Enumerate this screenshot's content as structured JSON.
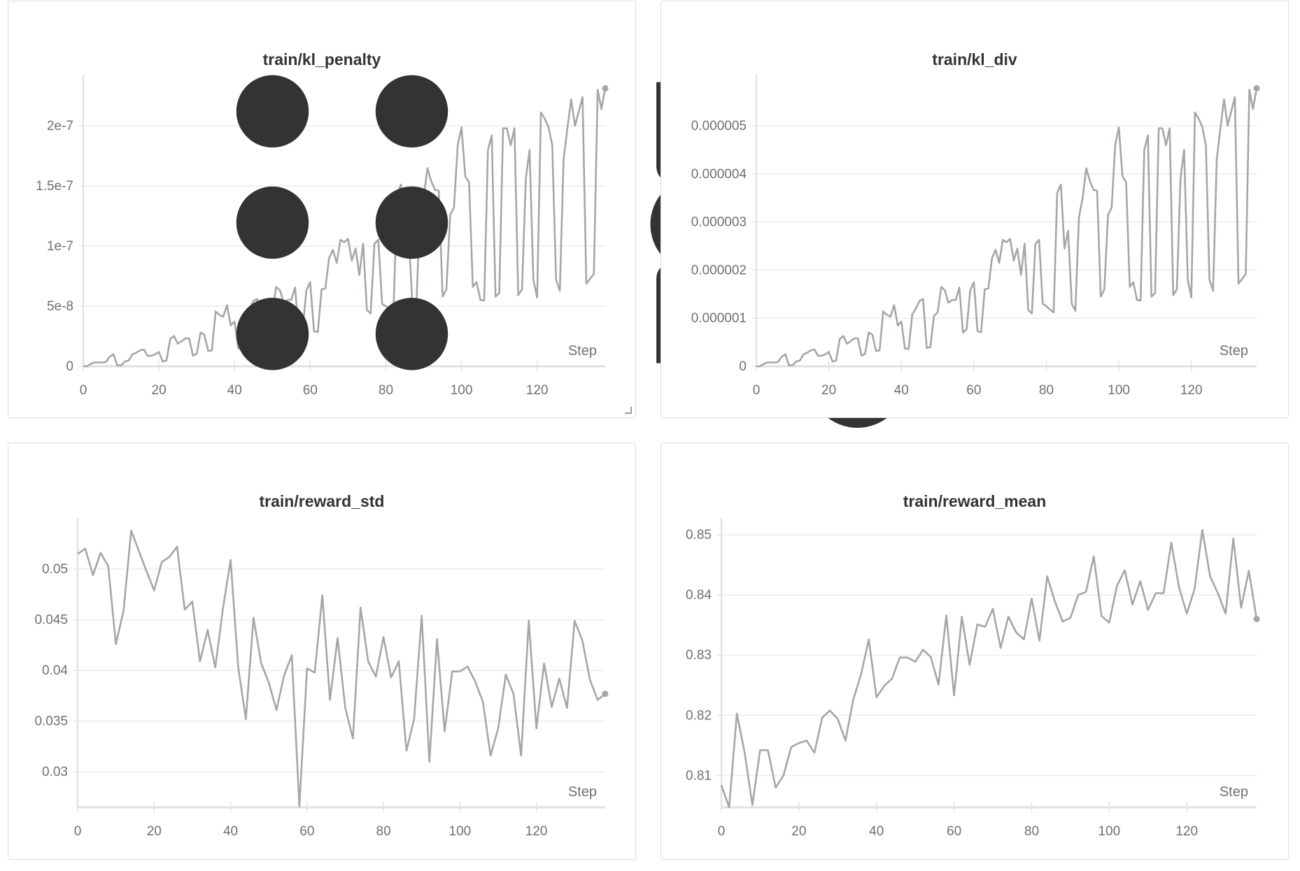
{
  "toolbar": {
    "icons": [
      "drag-handle-icon",
      "fullscreen-icon",
      "gear-icon",
      "more-icon"
    ]
  },
  "line_color": "#a3a7aa",
  "chart_data": [
    {
      "type": "line",
      "title": "train/kl_penalty",
      "xlabel": "Step",
      "xlim": [
        0,
        138
      ],
      "ylim": [
        0,
        2.32e-07
      ],
      "x_ticks": [
        0,
        20,
        40,
        60,
        80,
        100,
        120
      ],
      "x_tick_labels": [
        "0",
        "20",
        "40",
        "60",
        "80",
        "100",
        "120"
      ],
      "y_ticks": [
        0,
        5e-08,
        1e-07,
        1.5e-07,
        2e-07
      ],
      "y_tick_labels": [
        "0",
        "5e-8",
        "1e-7",
        "1.5e-7",
        "2e-7"
      ],
      "grid": true,
      "x": [
        0,
        1,
        2,
        3,
        4,
        5,
        6,
        7,
        8,
        9,
        10,
        11,
        12,
        13,
        14,
        15,
        16,
        17,
        18,
        19,
        20,
        21,
        22,
        23,
        24,
        25,
        26,
        27,
        28,
        29,
        30,
        31,
        32,
        33,
        34,
        35,
        36,
        37,
        38,
        39,
        40,
        41,
        42,
        43,
        44,
        45,
        46,
        47,
        48,
        49,
        50,
        51,
        52,
        53,
        54,
        55,
        56,
        57,
        58,
        59,
        60,
        61,
        62,
        63,
        64,
        65,
        66,
        67,
        68,
        69,
        70,
        71,
        72,
        73,
        74,
        75,
        76,
        77,
        78,
        79,
        80,
        81,
        82,
        83,
        84,
        85,
        86,
        87,
        88,
        89,
        90,
        91,
        92,
        93,
        94,
        95,
        96,
        97,
        98,
        99,
        100,
        101,
        102,
        103,
        104,
        105,
        106,
        107,
        108,
        109,
        110,
        111,
        112,
        113,
        114,
        115,
        116,
        117,
        118,
        119,
        120,
        121,
        122,
        123,
        124,
        125,
        126,
        127,
        128,
        129,
        130,
        131,
        132,
        133,
        134,
        135,
        136,
        137,
        138
      ],
      "y": [
        0,
        0,
        2e-09,
        3.2e-09,
        3.2e-09,
        3.2e-09,
        3.6e-09,
        8e-09,
        1e-08,
        8e-10,
        8e-10,
        4e-09,
        4.8e-09,
        1e-08,
        1.12e-08,
        1.32e-08,
        1.4e-08,
        8.8e-09,
        8.8e-09,
        1e-08,
        1.2e-08,
        4e-09,
        4.8e-09,
        2.28e-08,
        2.52e-08,
        1.88e-08,
        2.08e-08,
        2.32e-08,
        2.32e-08,
        8.8e-09,
        1.04e-08,
        2.8e-08,
        2.64e-08,
        1.28e-08,
        1.32e-08,
        4.56e-08,
        4.28e-08,
        4.12e-08,
        5.08e-08,
        3.4e-08,
        3.72e-08,
        1.48e-08,
        1.44e-08,
        4.32e-08,
        4.8e-08,
        5.44e-08,
        5.6e-08,
        1.52e-08,
        1.6e-08,
        4.2e-08,
        4.48e-08,
        6.6e-08,
        6.32e-08,
        5.28e-08,
        5.52e-08,
        5.52e-08,
        6.56e-08,
        2.8e-08,
        3.08e-08,
        6.32e-08,
        7e-08,
        2.92e-08,
        2.84e-08,
        6.4e-08,
        6.48e-08,
        9e-08,
        9.68e-08,
        8.6e-08,
        1.052e-07,
        1.032e-07,
        1.06e-07,
        8.8e-08,
        9.8e-08,
        7.6e-08,
        1.02e-07,
        4.68e-08,
        4.4e-08,
        1.02e-07,
        1.052e-07,
        5.2e-08,
        5e-08,
        4.72e-08,
        4.48e-08,
        1.44e-07,
        1.512e-07,
        9.8e-08,
        1.128e-07,
        5.2e-08,
        4.6e-08,
        1.24e-07,
        1.4e-07,
        1.648e-07,
        1.54e-07,
        1.468e-07,
        1.46e-07,
        5.8e-08,
        6.4e-08,
        1.26e-07,
        1.32e-07,
        1.84e-07,
        1.988e-07,
        1.58e-07,
        1.532e-07,
        6.6e-08,
        7e-08,
        5.52e-08,
        5.48e-08,
        1.8e-07,
        1.92e-07,
        5.8e-08,
        6.08e-08,
        1.98e-07,
        1.98e-07,
        1.84e-07,
        1.98e-07,
        5.92e-08,
        6.4e-08,
        1.56e-07,
        1.8e-07,
        7.2e-08,
        5.72e-08,
        2.112e-07,
        2.06e-07,
        1.992e-07,
        1.84e-07,
        7.2e-08,
        6.28e-08,
        1.72e-07,
        1.98e-07,
        2.22e-07,
        2e-07,
        2.12e-07,
        2.24e-07,
        6.88e-08,
        7.28e-08,
        7.68e-08,
        2.3e-07,
        2.14e-07,
        2.312e-07
      ]
    },
    {
      "type": "line",
      "title": "train/kl_div",
      "xlabel": "Step",
      "xlim": [
        0,
        138
      ],
      "ylim": [
        0,
        5.8e-06
      ],
      "x_ticks": [
        0,
        20,
        40,
        60,
        80,
        100,
        120
      ],
      "x_tick_labels": [
        "0",
        "20",
        "40",
        "60",
        "80",
        "100",
        "120"
      ],
      "y_ticks": [
        0,
        1e-06,
        2e-06,
        3e-06,
        4e-06,
        5e-06
      ],
      "y_tick_labels": [
        "0",
        "0.000001",
        "0.000002",
        "0.000003",
        "0.000004",
        "0.000005"
      ],
      "grid": true,
      "x": [
        0,
        1,
        2,
        3,
        4,
        5,
        6,
        7,
        8,
        9,
        10,
        11,
        12,
        13,
        14,
        15,
        16,
        17,
        18,
        19,
        20,
        21,
        22,
        23,
        24,
        25,
        26,
        27,
        28,
        29,
        30,
        31,
        32,
        33,
        34,
        35,
        36,
        37,
        38,
        39,
        40,
        41,
        42,
        43,
        44,
        45,
        46,
        47,
        48,
        49,
        50,
        51,
        52,
        53,
        54,
        55,
        56,
        57,
        58,
        59,
        60,
        61,
        62,
        63,
        64,
        65,
        66,
        67,
        68,
        69,
        70,
        71,
        72,
        73,
        74,
        75,
        76,
        77,
        78,
        79,
        80,
        81,
        82,
        83,
        84,
        85,
        86,
        87,
        88,
        89,
        90,
        91,
        92,
        93,
        94,
        95,
        96,
        97,
        98,
        99,
        100,
        101,
        102,
        103,
        104,
        105,
        106,
        107,
        108,
        109,
        110,
        111,
        112,
        113,
        114,
        115,
        116,
        117,
        118,
        119,
        120,
        121,
        122,
        123,
        124,
        125,
        126,
        127,
        128,
        129,
        130,
        131,
        132,
        133,
        134,
        135,
        136,
        137,
        138
      ],
      "y": [
        0,
        0,
        5e-08,
        8e-08,
        8e-08,
        8e-08,
        9e-08,
        2e-07,
        2.5e-07,
        2e-08,
        2e-08,
        1e-07,
        1.2e-07,
        2.5e-07,
        2.8e-07,
        3.3e-07,
        3.5e-07,
        2.2e-07,
        2.2e-07,
        2.5e-07,
        3e-07,
        1e-07,
        1.2e-07,
        5.7e-07,
        6.3e-07,
        4.7e-07,
        5.2e-07,
        5.8e-07,
        5.8e-07,
        2.2e-07,
        2.6e-07,
        7e-07,
        6.6e-07,
        3.2e-07,
        3.3e-07,
        1.14e-06,
        1.07e-06,
        1.03e-06,
        1.27e-06,
        8.5e-07,
        9.3e-07,
        3.7e-07,
        3.6e-07,
        1.08e-06,
        1.2e-06,
        1.36e-06,
        1.4e-06,
        3.8e-07,
        4e-07,
        1.05e-06,
        1.12e-06,
        1.65e-06,
        1.58e-06,
        1.32e-06,
        1.38e-06,
        1.38e-06,
        1.64e-06,
        7e-07,
        7.7e-07,
        1.58e-06,
        1.75e-06,
        7.3e-07,
        7.1e-07,
        1.6e-06,
        1.62e-06,
        2.25e-06,
        2.42e-06,
        2.15e-06,
        2.63e-06,
        2.58e-06,
        2.65e-06,
        2.2e-06,
        2.45e-06,
        1.9e-06,
        2.55e-06,
        1.17e-06,
        1.1e-06,
        2.55e-06,
        2.63e-06,
        1.3e-06,
        1.25e-06,
        1.18e-06,
        1.12e-06,
        3.6e-06,
        3.78e-06,
        2.45e-06,
        2.82e-06,
        1.3e-06,
        1.15e-06,
        3.1e-06,
        3.5e-06,
        4.12e-06,
        3.85e-06,
        3.67e-06,
        3.65e-06,
        1.45e-06,
        1.6e-06,
        3.15e-06,
        3.3e-06,
        4.6e-06,
        4.97e-06,
        3.95e-06,
        3.83e-06,
        1.65e-06,
        1.75e-06,
        1.38e-06,
        1.37e-06,
        4.5e-06,
        4.8e-06,
        1.45e-06,
        1.52e-06,
        4.95e-06,
        4.95e-06,
        4.6e-06,
        4.95e-06,
        1.48e-06,
        1.6e-06,
        3.9e-06,
        4.5e-06,
        1.8e-06,
        1.43e-06,
        5.28e-06,
        5.15e-06,
        4.98e-06,
        4.6e-06,
        1.8e-06,
        1.57e-06,
        4.3e-06,
        4.95e-06,
        5.55e-06,
        5e-06,
        5.3e-06,
        5.6e-06,
        1.72e-06,
        1.82e-06,
        1.92e-06,
        5.75e-06,
        5.35e-06,
        5.78e-06
      ]
    },
    {
      "type": "line",
      "title": "train/reward_std",
      "xlabel": "Step",
      "xlim": [
        0,
        138
      ],
      "ylim": [
        0.0265,
        0.0538
      ],
      "x_ticks": [
        0,
        20,
        40,
        60,
        80,
        100,
        120
      ],
      "x_tick_labels": [
        "0",
        "20",
        "40",
        "60",
        "80",
        "100",
        "120"
      ],
      "y_ticks": [
        0.03,
        0.035,
        0.04,
        0.045,
        0.05
      ],
      "y_tick_labels": [
        "0.03",
        "0.035",
        "0.04",
        "0.045",
        "0.05"
      ],
      "grid": true,
      "x": [
        0,
        2,
        4,
        6,
        8,
        10,
        12,
        14,
        16,
        18,
        20,
        22,
        24,
        26,
        28,
        30,
        32,
        34,
        36,
        38,
        40,
        42,
        44,
        46,
        48,
        50,
        52,
        54,
        56,
        58,
        60,
        62,
        64,
        66,
        68,
        70,
        72,
        74,
        76,
        78,
        80,
        82,
        84,
        86,
        88,
        90,
        92,
        94,
        96,
        98,
        100,
        102,
        104,
        106,
        108,
        110,
        112,
        114,
        116,
        118,
        120,
        122,
        124,
        126,
        128,
        130,
        132,
        134,
        136,
        138
      ],
      "y": [
        0.0515,
        0.052,
        0.0494,
        0.0516,
        0.0503,
        0.0426,
        0.0459,
        0.0538,
        0.0518,
        0.0498,
        0.0479,
        0.0507,
        0.0512,
        0.0522,
        0.046,
        0.0468,
        0.0409,
        0.044,
        0.0403,
        0.0461,
        0.0509,
        0.0403,
        0.0352,
        0.0452,
        0.0407,
        0.0388,
        0.0361,
        0.0395,
        0.0415,
        0.0266,
        0.0402,
        0.0398,
        0.0474,
        0.0371,
        0.0432,
        0.0363,
        0.0333,
        0.0462,
        0.0409,
        0.0394,
        0.0433,
        0.0393,
        0.0409,
        0.0321,
        0.0352,
        0.0454,
        0.031,
        0.0431,
        0.034,
        0.0399,
        0.0399,
        0.0404,
        0.0389,
        0.0369,
        0.0316,
        0.0343,
        0.0396,
        0.0377,
        0.0316,
        0.0449,
        0.0343,
        0.0407,
        0.0364,
        0.0392,
        0.0363,
        0.0449,
        0.043,
        0.0391,
        0.0371,
        0.0377
      ]
    },
    {
      "type": "line",
      "title": "train/reward_mean",
      "xlabel": "Step",
      "xlim": [
        0,
        138
      ],
      "ylim": [
        0.8047,
        0.8507
      ],
      "x_ticks": [
        0,
        20,
        40,
        60,
        80,
        100,
        120
      ],
      "x_tick_labels": [
        "0",
        "20",
        "40",
        "60",
        "80",
        "100",
        "120"
      ],
      "y_ticks": [
        0.81,
        0.82,
        0.83,
        0.84,
        0.85
      ],
      "y_tick_labels": [
        "0.81",
        "0.82",
        "0.83",
        "0.84",
        "0.85"
      ],
      "grid": true,
      "x": [
        0,
        2,
        4,
        6,
        8,
        10,
        12,
        14,
        16,
        18,
        20,
        22,
        24,
        26,
        28,
        30,
        32,
        34,
        36,
        38,
        40,
        42,
        44,
        46,
        48,
        50,
        52,
        54,
        56,
        58,
        60,
        62,
        64,
        66,
        68,
        70,
        72,
        74,
        76,
        78,
        80,
        82,
        84,
        86,
        88,
        90,
        92,
        94,
        96,
        98,
        100,
        102,
        104,
        106,
        108,
        110,
        112,
        114,
        116,
        118,
        120,
        122,
        124,
        126,
        128,
        130,
        132,
        134,
        136,
        138
      ],
      "y": [
        0.8084,
        0.8047,
        0.8203,
        0.8138,
        0.8051,
        0.8142,
        0.8142,
        0.808,
        0.81,
        0.8147,
        0.8154,
        0.8158,
        0.8138,
        0.8196,
        0.8208,
        0.8194,
        0.8158,
        0.8226,
        0.8268,
        0.8326,
        0.823,
        0.8249,
        0.8261,
        0.8296,
        0.8296,
        0.8289,
        0.8309,
        0.8297,
        0.8251,
        0.8366,
        0.8233,
        0.8364,
        0.8284,
        0.8351,
        0.8347,
        0.8377,
        0.8312,
        0.8364,
        0.8338,
        0.8326,
        0.8394,
        0.8324,
        0.8431,
        0.8389,
        0.8356,
        0.8362,
        0.84,
        0.8405,
        0.8464,
        0.8365,
        0.8354,
        0.8415,
        0.8441,
        0.8384,
        0.8423,
        0.8375,
        0.8403,
        0.8403,
        0.8487,
        0.8413,
        0.8369,
        0.841,
        0.8508,
        0.8431,
        0.8403,
        0.8369,
        0.8494,
        0.8379,
        0.844,
        0.836
      ]
    }
  ]
}
